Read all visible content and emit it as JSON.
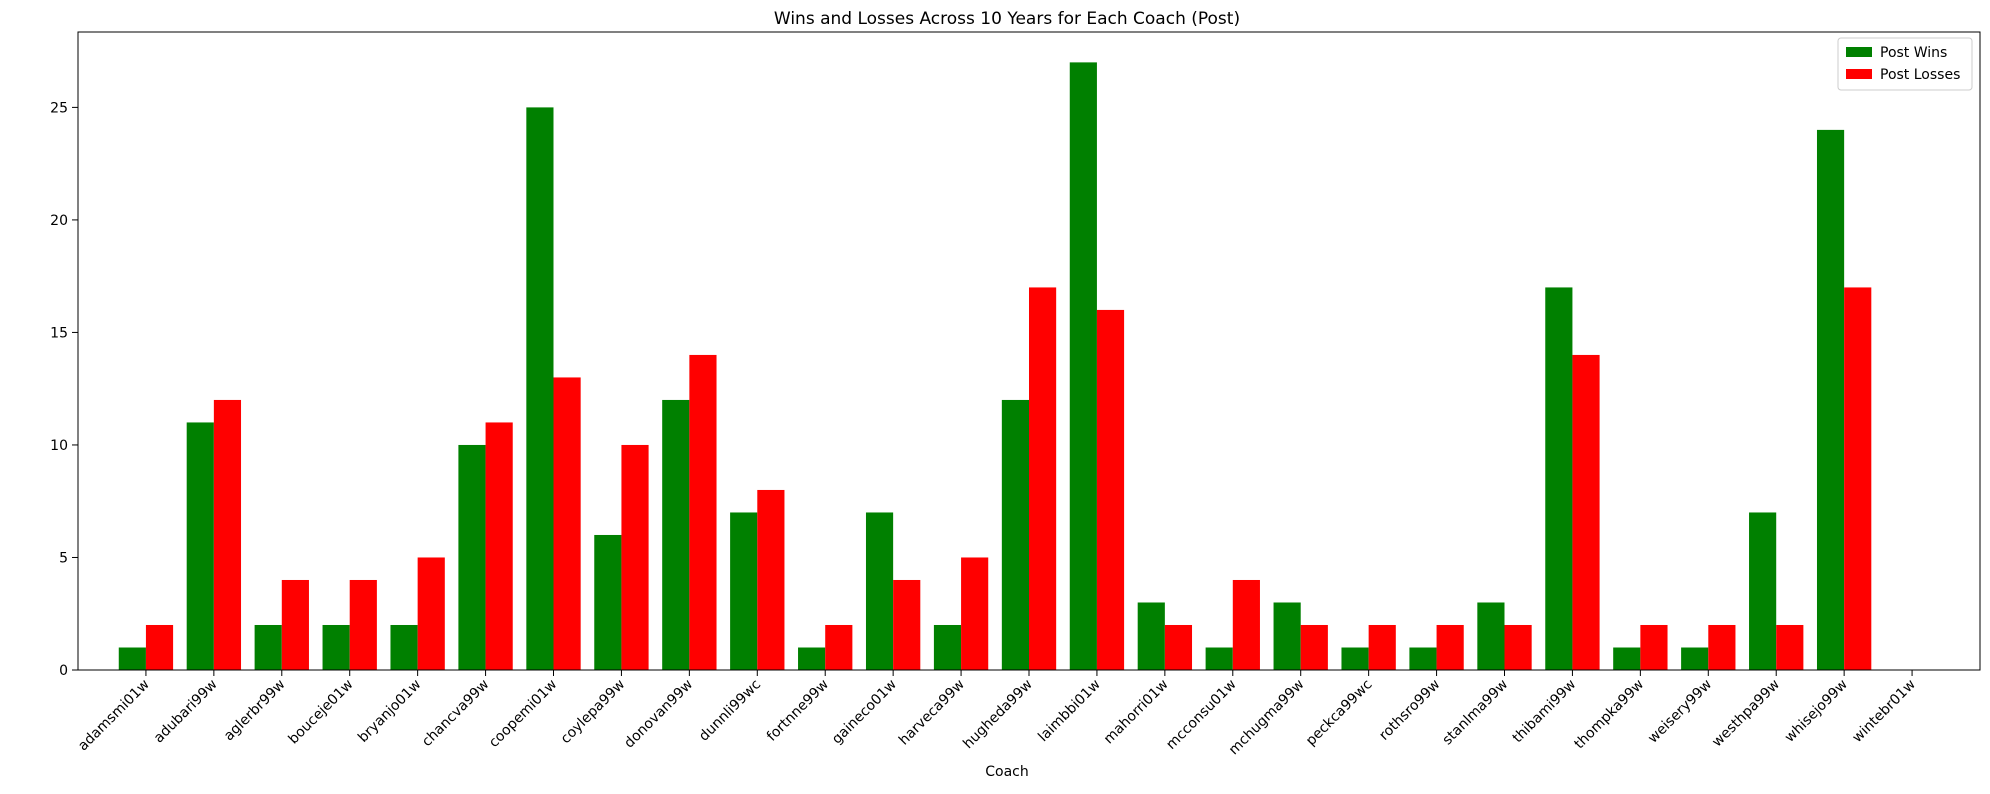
{
  "chart_data": {
    "type": "bar",
    "title": "Wins and Losses Across 10 Years for Each Coach (Post)",
    "xlabel": "Coach",
    "ylabel": "",
    "ylim": [
      0,
      28.35
    ],
    "yticks": [
      0,
      5,
      10,
      15,
      20,
      25
    ],
    "grid": false,
    "legend_position": "top-right",
    "categories": [
      "adamsmi01w",
      "adubari99w",
      "aglerbr99w",
      "bouceje01w",
      "bryanjo01w",
      "chancva99w",
      "coopemi01w",
      "coylepa99w",
      "donovan99w",
      "dunnli99wc",
      "fortnne99w",
      "gaineco01w",
      "harveca99w",
      "hugheda99w",
      "laimbbi01w",
      "mahorri01w",
      "mcconsu01w",
      "mchugma99w",
      "peckca99wc",
      "rothsro99w",
      "stanlma99w",
      "thibami99w",
      "thompka99w",
      "weisery99w",
      "westhpa99w",
      "whisejo99w",
      "wintebr01w"
    ],
    "series": [
      {
        "name": "Post Wins",
        "color": "#008000",
        "values": [
          1,
          11,
          2,
          2,
          2,
          10,
          25,
          6,
          12,
          7,
          1,
          7,
          2,
          12,
          27,
          3,
          1,
          3,
          1,
          1,
          3,
          17,
          1,
          1,
          7,
          24,
          0
        ]
      },
      {
        "name": "Post Losses",
        "color": "#ff0000",
        "values": [
          2,
          12,
          4,
          4,
          5,
          11,
          13,
          10,
          14,
          8,
          2,
          4,
          5,
          17,
          16,
          2,
          4,
          2,
          2,
          2,
          2,
          14,
          2,
          2,
          2,
          17,
          0
        ]
      }
    ]
  }
}
